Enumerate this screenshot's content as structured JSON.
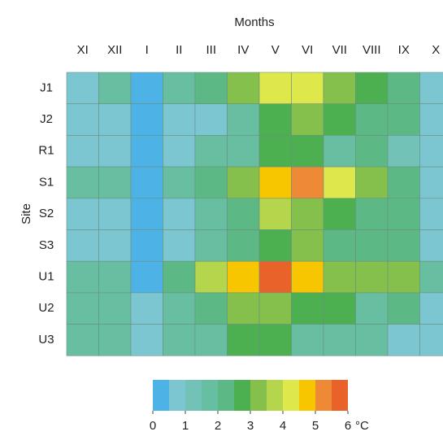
{
  "chart_data": {
    "type": "heatmap",
    "x_label": "Months",
    "y_label": "Site",
    "x_categories": [
      "XI",
      "XII",
      "I",
      "II",
      "III",
      "IV",
      "V",
      "VI",
      "VII",
      "VIII",
      "IX",
      "X"
    ],
    "y_categories": [
      "J1",
      "J2",
      "R1",
      "S1",
      "S2",
      "S3",
      "U1",
      "U2",
      "U3"
    ],
    "values": [
      [
        0.75,
        1.75,
        0.25,
        1.75,
        2.25,
        3.25,
        4.25,
        4.25,
        3.25,
        2.75,
        2.25,
        0.75
      ],
      [
        0.75,
        0.75,
        0.25,
        0.75,
        0.75,
        1.75,
        2.75,
        3.25,
        2.75,
        2.25,
        2.25,
        0.75
      ],
      [
        0.75,
        0.75,
        0.25,
        0.75,
        1.75,
        1.75,
        2.75,
        2.75,
        1.75,
        2.25,
        1.25,
        0.75
      ],
      [
        1.75,
        1.75,
        0.25,
        1.75,
        2.25,
        3.25,
        4.75,
        5.25,
        4.25,
        3.25,
        2.25,
        0.75
      ],
      [
        0.75,
        0.75,
        0.25,
        0.75,
        1.75,
        2.25,
        3.75,
        3.25,
        2.75,
        2.25,
        2.25,
        0.75
      ],
      [
        0.75,
        0.75,
        0.25,
        0.75,
        1.75,
        2.25,
        2.75,
        3.25,
        2.25,
        2.25,
        2.25,
        0.75
      ],
      [
        1.75,
        1.75,
        0.25,
        2.25,
        3.75,
        4.75,
        5.75,
        4.75,
        3.25,
        3.25,
        3.25,
        1.75
      ],
      [
        1.75,
        1.75,
        0.75,
        1.75,
        2.25,
        3.25,
        3.25,
        2.75,
        2.75,
        1.75,
        2.25,
        0.75
      ],
      [
        1.75,
        1.75,
        0.75,
        1.75,
        1.75,
        2.75,
        2.75,
        1.75,
        1.75,
        1.75,
        0.75,
        0.75
      ]
    ],
    "colorbar": {
      "bins": [
        0,
        0.5,
        1,
        1.5,
        2,
        2.5,
        3,
        3.5,
        4,
        4.5,
        5,
        5.5,
        6
      ],
      "colors": [
        "#4db3e6",
        "#7cc6d2",
        "#72c2b7",
        "#68bea0",
        "#5cb985",
        "#4caf50",
        "#86c04c",
        "#b5d54c",
        "#dfe84a",
        "#f7c600",
        "#ee8a35",
        "#e8622a"
      ],
      "ticks": [
        0,
        1,
        2,
        3,
        4,
        5,
        6
      ],
      "unit": "°C"
    }
  }
}
